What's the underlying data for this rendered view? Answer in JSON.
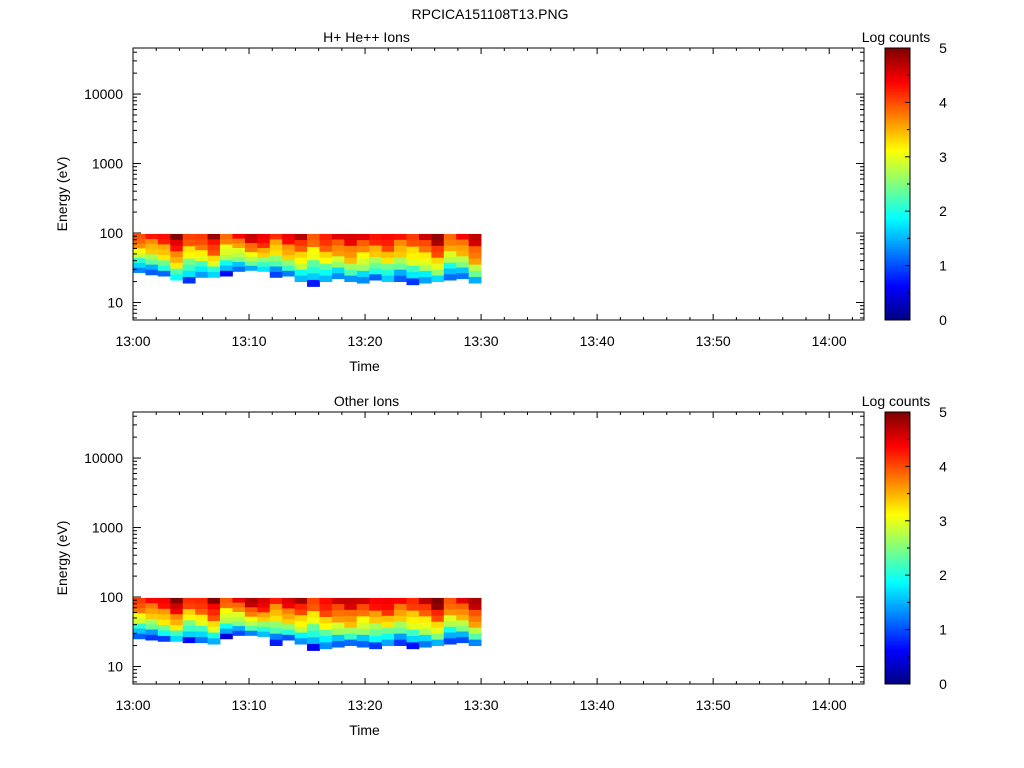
{
  "file_title": "RPCICA151108T13.PNG",
  "chart_data": [
    {
      "type": "heatmap",
      "title": "H+ He++ Ions",
      "xlabel": "Time",
      "ylabel": "Energy (eV)",
      "x_ticks": [
        "13:00",
        "13:10",
        "13:20",
        "13:30",
        "13:40",
        "13:50",
        "14:00"
      ],
      "x_range_minutes": [
        0,
        63
      ],
      "y_scale": "log",
      "y_ticks": [
        10,
        100,
        1000,
        10000
      ],
      "y_tick_labels": [
        "10",
        "100",
        "1000",
        "10000"
      ],
      "y_range": [
        5.6,
        46000
      ],
      "colorbar": {
        "label": "Log counts",
        "range": [
          0,
          5
        ],
        "ticks": [
          "0",
          "1",
          "2",
          "3",
          "4",
          "5"
        ],
        "colormap": "jet"
      },
      "data_time_minutes": [
        0,
        30
      ],
      "data_energy_top_eV": 97,
      "time_steps": 28,
      "lower_edge_eV": [
        27,
        25,
        24,
        21,
        19,
        23,
        23,
        24,
        28,
        29,
        28,
        23,
        24,
        20,
        17,
        20,
        22,
        20,
        19,
        21,
        20,
        20,
        18,
        19,
        20,
        21,
        22,
        19
      ],
      "row_profile_log": [
        4.3,
        4.0,
        3.6,
        3.3,
        2.9,
        2.4,
        1.8,
        1.2
      ]
    },
    {
      "type": "heatmap",
      "title": "Other Ions",
      "xlabel": "Time",
      "ylabel": "Energy (eV)",
      "x_ticks": [
        "13:00",
        "13:10",
        "13:20",
        "13:30",
        "13:40",
        "13:50",
        "14:00"
      ],
      "x_range_minutes": [
        0,
        63
      ],
      "y_scale": "log",
      "y_ticks": [
        10,
        100,
        1000,
        10000
      ],
      "y_tick_labels": [
        "10",
        "100",
        "1000",
        "10000"
      ],
      "y_range": [
        5.6,
        46000
      ],
      "colorbar": {
        "label": "Log counts",
        "range": [
          0,
          5
        ],
        "ticks": [
          "0",
          "1",
          "2",
          "3",
          "4",
          "5"
        ],
        "colormap": "jet"
      },
      "data_time_minutes": [
        0,
        30
      ],
      "data_energy_top_eV": 97,
      "time_steps": 28,
      "lower_edge_eV": [
        25,
        24,
        23,
        23,
        22,
        22,
        21,
        25,
        28,
        28,
        27,
        20,
        24,
        21,
        17,
        18,
        19,
        20,
        19,
        18,
        20,
        20,
        18,
        19,
        20,
        21,
        22,
        20
      ],
      "row_profile_log": [
        4.4,
        4.1,
        3.7,
        3.3,
        2.9,
        2.4,
        1.7,
        1.0
      ]
    }
  ]
}
